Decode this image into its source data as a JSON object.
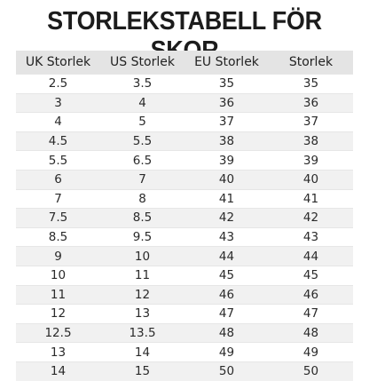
{
  "title": "STORLEKSTABELL FÖR SKOR",
  "table": {
    "headers": [
      "UK Storlek",
      "US Storlek",
      "EU Storlek",
      "Storlek"
    ],
    "rows": [
      [
        "2.5",
        "3.5",
        "35",
        "35"
      ],
      [
        "3",
        "4",
        "36",
        "36"
      ],
      [
        "4",
        "5",
        "37",
        "37"
      ],
      [
        "4.5",
        "5.5",
        "38",
        "38"
      ],
      [
        "5.5",
        "6.5",
        "39",
        "39"
      ],
      [
        "6",
        "7",
        "40",
        "40"
      ],
      [
        "7",
        "8",
        "41",
        "41"
      ],
      [
        "7.5",
        "8.5",
        "42",
        "42"
      ],
      [
        "8.5",
        "9.5",
        "43",
        "43"
      ],
      [
        "9",
        "10",
        "44",
        "44"
      ],
      [
        "10",
        "11",
        "45",
        "45"
      ],
      [
        "11",
        "12",
        "46",
        "46"
      ],
      [
        "12",
        "13",
        "47",
        "47"
      ],
      [
        "12.5",
        "13.5",
        "48",
        "48"
      ],
      [
        "13",
        "14",
        "49",
        "49"
      ],
      [
        "14",
        "15",
        "50",
        "50"
      ]
    ]
  }
}
